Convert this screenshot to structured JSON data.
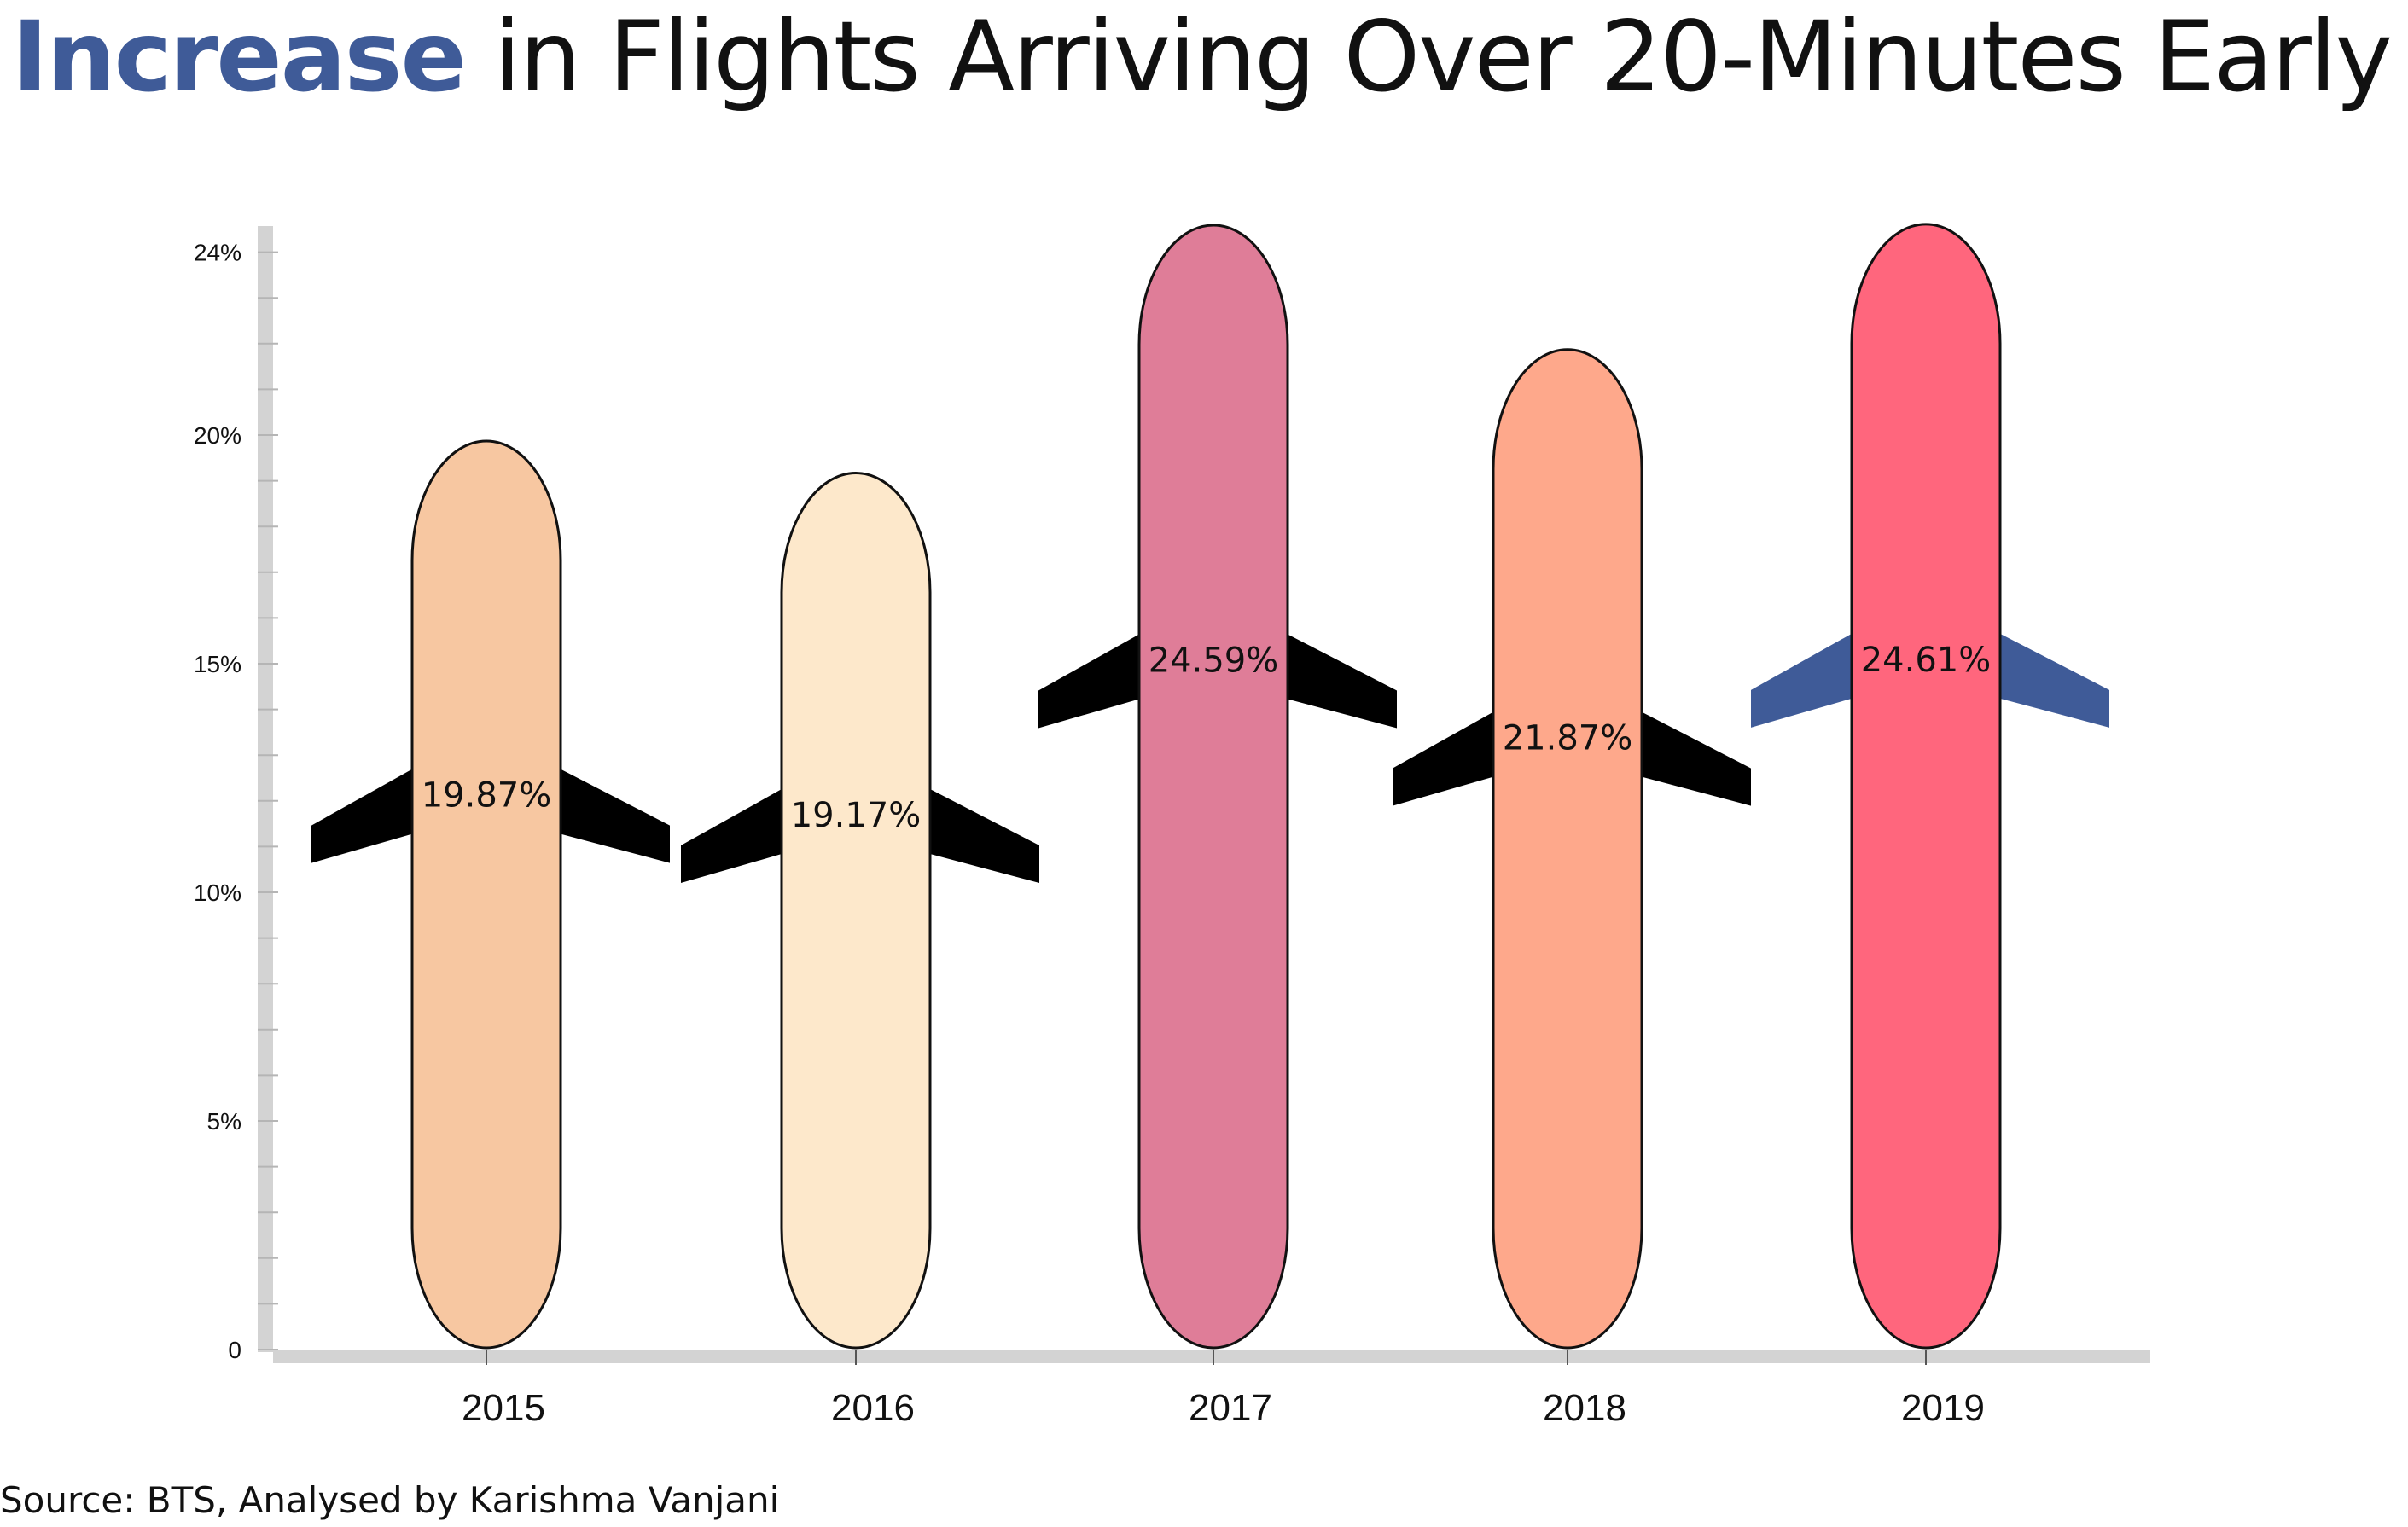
{
  "title": {
    "highlight": "Increase",
    "rest": "in Flights Arriving Over 20-Minutes Early",
    "highlight_color": "#3f5b98"
  },
  "source": "Source: BTS, Analysed by Karishma Vanjani",
  "chart_data": {
    "type": "bar",
    "title": "Increase in Flights Arriving Over 20-Minutes Early",
    "categories": [
      "2015",
      "2016",
      "2017",
      "2018",
      "2019"
    ],
    "values": [
      19.87,
      19.17,
      24.59,
      21.87,
      24.61
    ],
    "value_labels": [
      "19.87%",
      "19.17%",
      "24.59%",
      "21.87%",
      "24.61%"
    ],
    "ylim": [
      0,
      25
    ],
    "yticks": [
      {
        "value": 0,
        "label": "0"
      },
      {
        "value": 5,
        "label": "5%"
      },
      {
        "value": 10,
        "label": "10%"
      },
      {
        "value": 15,
        "label": "15%"
      },
      {
        "value": 20,
        "label": "20%"
      },
      {
        "value": 24,
        "label": "24%"
      }
    ],
    "xlabel": "",
    "ylabel": "",
    "grid": false,
    "legend": "none",
    "mark_style": "airplane-fuselage",
    "bar_colors": [
      "#f7c7a1",
      "#fde8cb",
      "#df7d98",
      "#fea88b",
      "#ff667d"
    ],
    "wing_colors": [
      "#000000",
      "#000000",
      "#000000",
      "#000000",
      "#3f5b98"
    ]
  }
}
